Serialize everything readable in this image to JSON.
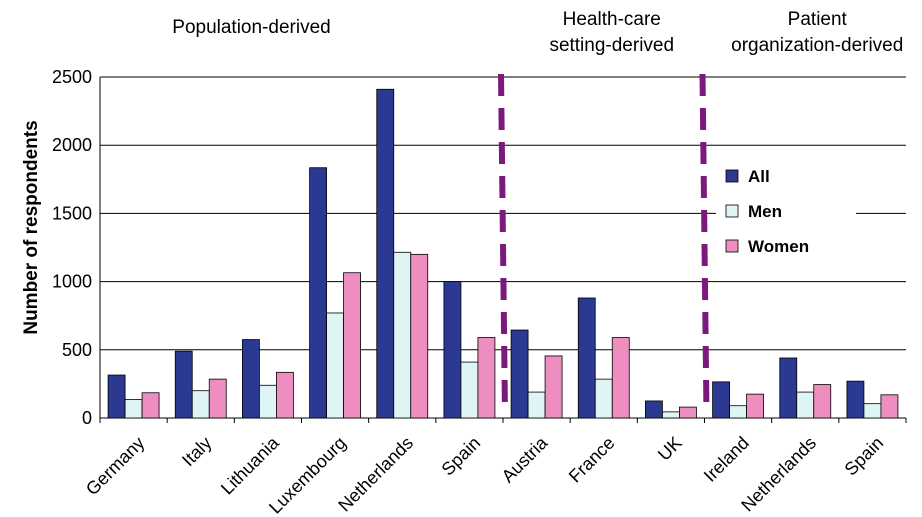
{
  "chart_data": {
    "type": "bar",
    "categories": [
      "Germany",
      "Italy",
      "Lithuania",
      "Luxembourg",
      "Netherlands",
      "Spain",
      "Austria",
      "France",
      "UK",
      "Ireland",
      "Netherlands",
      "Spain"
    ],
    "series": [
      {
        "name": "All",
        "color": "#2b3990",
        "values": [
          315,
          490,
          575,
          1835,
          2410,
          1000,
          645,
          880,
          125,
          265,
          440,
          270
        ]
      },
      {
        "name": "Men",
        "color": "#dff4f4",
        "values": [
          135,
          200,
          240,
          770,
          1215,
          410,
          190,
          285,
          45,
          90,
          190,
          105
        ]
      },
      {
        "name": "Women",
        "color": "#ee8ec0",
        "values": [
          185,
          285,
          335,
          1065,
          1200,
          590,
          455,
          590,
          80,
          175,
          245,
          170
        ]
      }
    ],
    "ylabel": "Number of respondents",
    "xlabel": "",
    "ylim": [
      0,
      2500
    ],
    "yticks": [
      0,
      500,
      1000,
      1500,
      2000,
      2500
    ],
    "grid": true,
    "legend_position": "right",
    "groups": [
      {
        "label_lines": [
          "Population-derived"
        ],
        "start": 0,
        "end": 5
      },
      {
        "label_lines": [
          "Health-care",
          "setting-derived"
        ],
        "start": 6,
        "end": 8
      },
      {
        "label_lines": [
          "Patient",
          "organization-derived"
        ],
        "start": 9,
        "end": 11
      }
    ],
    "divider_color": "#7b1a7b"
  }
}
